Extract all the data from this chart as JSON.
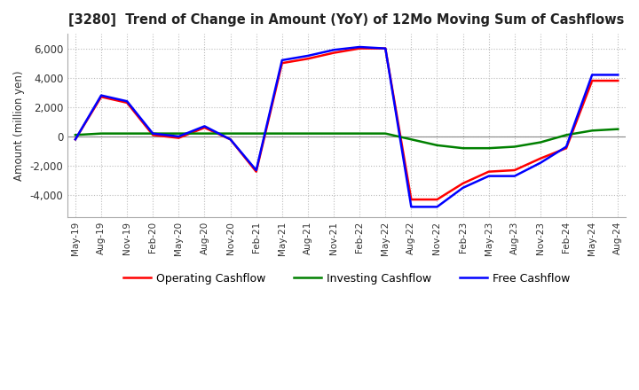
{
  "title": "[3280]  Trend of Change in Amount (YoY) of 12Mo Moving Sum of Cashflows",
  "ylabel": "Amount (million yen)",
  "ylim": [
    -5500,
    7000
  ],
  "yticks": [
    -4000,
    -2000,
    0,
    2000,
    4000,
    6000
  ],
  "x_labels": [
    "May-19",
    "Aug-19",
    "Nov-19",
    "Feb-20",
    "May-20",
    "Aug-20",
    "Nov-20",
    "Feb-21",
    "May-21",
    "Aug-21",
    "Nov-21",
    "Feb-22",
    "May-22",
    "Aug-22",
    "Nov-22",
    "Feb-23",
    "May-23",
    "Aug-23",
    "Nov-23",
    "Feb-24",
    "May-24",
    "Aug-24"
  ],
  "operating": [
    -200,
    2700,
    2300,
    100,
    -100,
    600,
    -200,
    -2400,
    5000,
    5300,
    5700,
    6000,
    6000,
    -4300,
    -4300,
    -3200,
    -2400,
    -2300,
    -1500,
    -800,
    3800,
    3800
  ],
  "investing": [
    100,
    200,
    200,
    200,
    200,
    200,
    200,
    200,
    200,
    200,
    200,
    200,
    200,
    -200,
    -600,
    -800,
    -800,
    -700,
    -400,
    100,
    400,
    500
  ],
  "free": [
    -200,
    2800,
    2400,
    200,
    0,
    700,
    -200,
    -2300,
    5200,
    5500,
    5900,
    6100,
    6000,
    -4800,
    -4800,
    -3500,
    -2700,
    -2700,
    -1800,
    -700,
    4200,
    4200
  ],
  "operating_color": "#ff0000",
  "investing_color": "#008000",
  "free_color": "#0000ff",
  "background_color": "#ffffff",
  "grid_color": "#bbbbbb"
}
